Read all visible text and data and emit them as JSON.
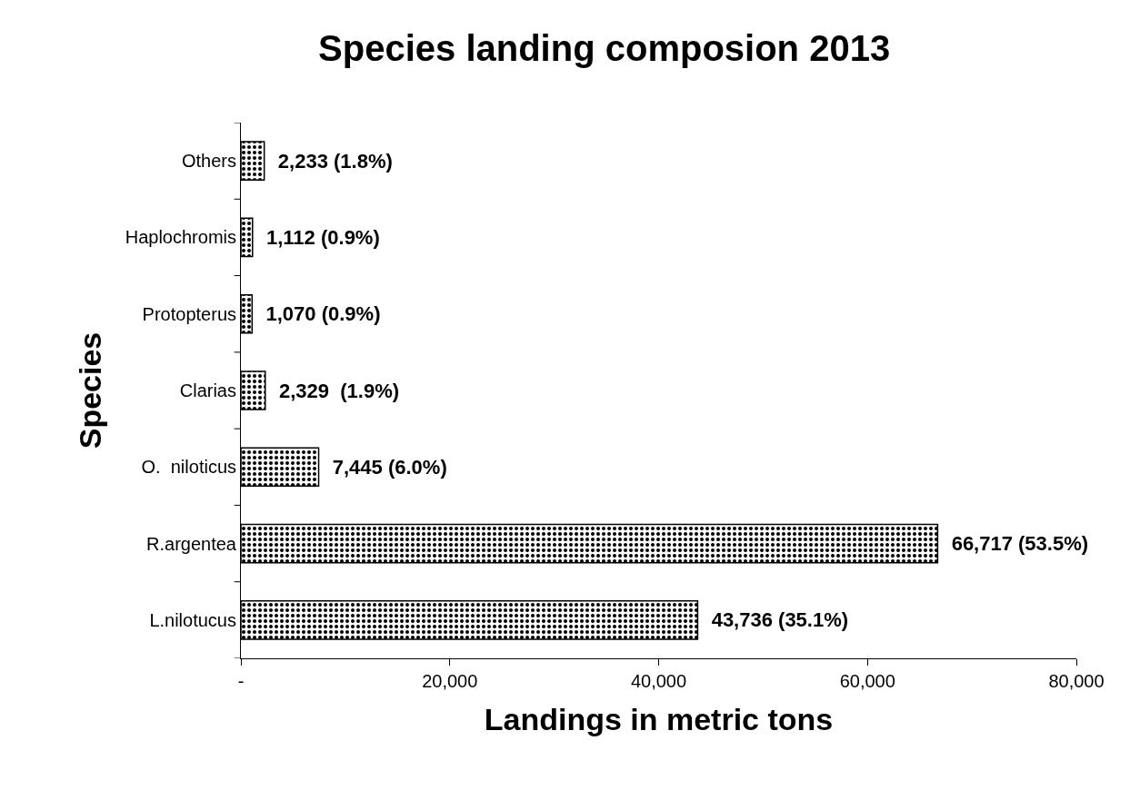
{
  "chart_data": {
    "type": "bar",
    "orientation": "horizontal",
    "title": "Species landing composion 2013",
    "xlabel": "Landings in metric tons",
    "ylabel": "Species",
    "categories": [
      "Others",
      "Haplochromis",
      "Protopterus",
      "Clarias",
      "O.  niloticus",
      "R.argentea",
      "L.nilotucus"
    ],
    "values": [
      2233,
      1112,
      1070,
      2329,
      7445,
      66717,
      43736
    ],
    "value_labels": [
      "2,233 (1.8%)",
      "1,112 (0.9%)",
      "1,070 (0.9%)",
      "2,329  (1.9%)",
      "7,445 (6.0%)",
      "66,717 (53.5%)",
      "43,736 (35.1%)"
    ],
    "color": "#000000",
    "xlim": [
      0,
      80000
    ],
    "xticks": [
      {
        "value": 0,
        "label": "-"
      },
      {
        "value": 20000,
        "label": "20,000"
      },
      {
        "value": 40000,
        "label": "40,000"
      },
      {
        "value": 60000,
        "label": "60,000"
      },
      {
        "value": 80000,
        "label": "80,000"
      }
    ],
    "grid": false,
    "legend": false
  }
}
